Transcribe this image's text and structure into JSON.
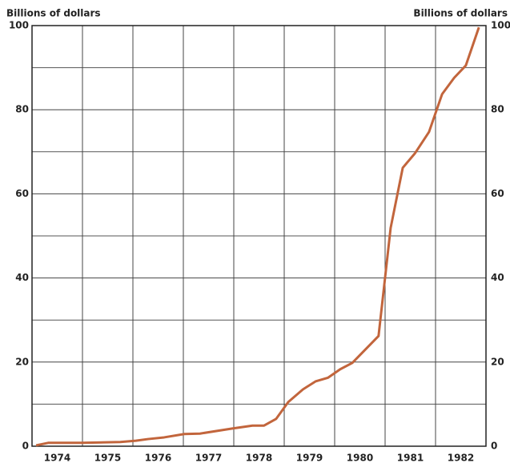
{
  "chart_data": {
    "type": "line",
    "ylabel_left": "Billions of dollars",
    "ylabel_right": "Billions of dollars",
    "x": [
      1974.08,
      1974.32,
      1975.0,
      1975.75,
      1976.06,
      1976.3,
      1976.62,
      1977.02,
      1977.33,
      1977.97,
      1978.37,
      1978.6,
      1978.84,
      1979.08,
      1979.37,
      1979.62,
      1979.87,
      1980.11,
      1980.35,
      1980.87,
      1981.11,
      1981.35,
      1981.59,
      1981.87,
      1982.13,
      1982.37,
      1982.6,
      1982.86
    ],
    "series": [
      {
        "color": "#c2653c",
        "values": [
          0.2,
          0.8,
          0.8,
          1.0,
          1.3,
          1.7,
          2.1,
          2.9,
          3.0,
          4.2,
          4.9,
          4.9,
          6.5,
          10.5,
          13.5,
          15.4,
          16.3,
          18.3,
          19.8,
          26.2,
          51.9,
          66.2,
          69.6,
          74.7,
          83.7,
          87.6,
          90.5,
          99.6
        ]
      }
    ],
    "xlim": [
      1974,
      1983
    ],
    "xticks": [
      {
        "value": 1974.5,
        "label": "1974"
      },
      {
        "value": 1975.5,
        "label": "1975"
      },
      {
        "value": 1976.5,
        "label": "1976"
      },
      {
        "value": 1977.5,
        "label": "1977"
      },
      {
        "value": 1978.5,
        "label": "1978"
      },
      {
        "value": 1979.5,
        "label": "1979"
      },
      {
        "value": 1980.5,
        "label": "1980"
      },
      {
        "value": 1981.5,
        "label": "1981"
      },
      {
        "value": 1982.5,
        "label": "1982"
      }
    ],
    "xgrid": [
      1975,
      1976,
      1977,
      1978,
      1979,
      1980,
      1981,
      1982
    ],
    "ylim": [
      0,
      100
    ],
    "yticks": [
      0,
      20,
      40,
      60,
      80,
      100
    ],
    "minor_ygrid": [
      10,
      30,
      50,
      70,
      90
    ],
    "grid": true
  }
}
